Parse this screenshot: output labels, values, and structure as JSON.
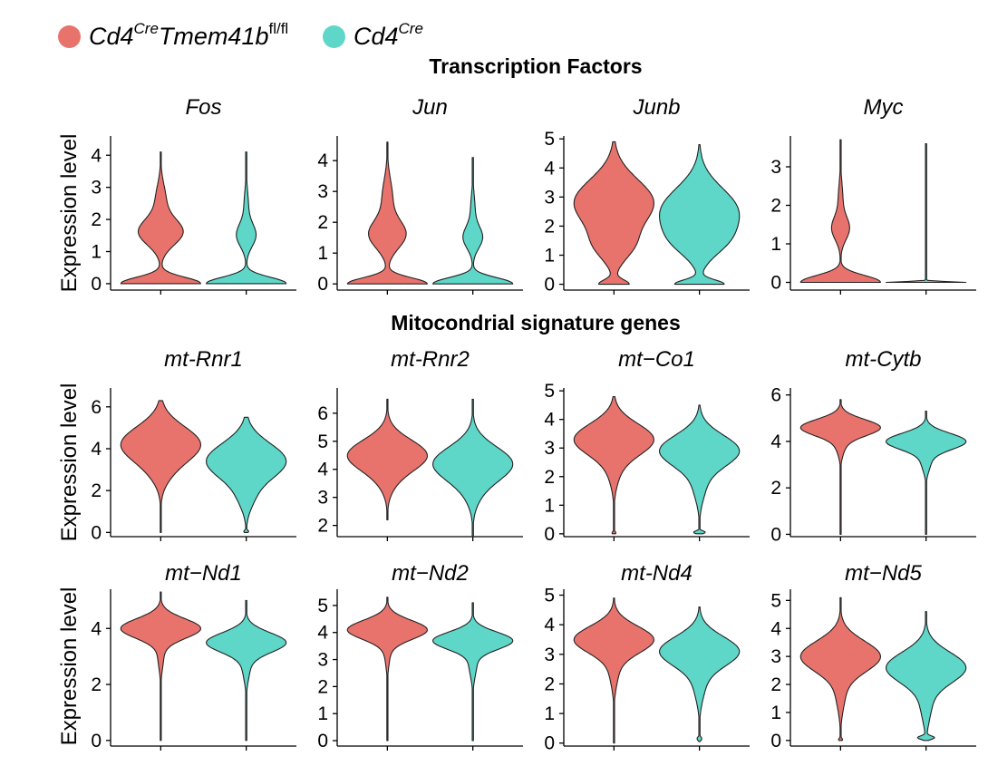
{
  "legend": {
    "items": [
      {
        "label_main": "Cd4",
        "label_sup1": "Cre",
        "label_main2": "Tmem41b",
        "label_sup2": "fl/fl",
        "color": "#E8736C"
      },
      {
        "label_main": "Cd4",
        "label_sup1": "Cre",
        "label_main2": "",
        "label_sup2": "",
        "color": "#5ED6C8"
      }
    ]
  },
  "sections": {
    "transcription": "Transcription Factors",
    "mito": "Mitocondrial signature genes"
  },
  "y_axis_label": "Expression level",
  "chart_data": [
    {
      "type": "violin",
      "title": "Fos",
      "ylim": [
        -0.2,
        4.6
      ],
      "yticks": [
        0,
        1,
        2,
        3,
        4
      ],
      "groups": [
        {
          "name": "Cd4Cre Tmem41b fl/fl",
          "color": "#E8736C",
          "min": 0,
          "max": 4.1,
          "modes": [
            [
              0.0,
              0.55,
              0.2
            ],
            [
              1.6,
              0.3,
              0.4
            ],
            [
              2.6,
              0.07,
              0.5
            ]
          ]
        },
        {
          "name": "Cd4Cre",
          "color": "#5ED6C8",
          "min": 0,
          "max": 4.1,
          "modes": [
            [
              0.0,
              0.55,
              0.2
            ],
            [
              1.5,
              0.13,
              0.35
            ],
            [
              2.4,
              0.03,
              0.5
            ]
          ]
        }
      ]
    },
    {
      "type": "violin",
      "title": "Jun",
      "ylim": [
        -0.2,
        4.8
      ],
      "yticks": [
        0,
        1,
        2,
        3,
        4
      ],
      "groups": [
        {
          "name": "Cd4Cre Tmem41b fl/fl",
          "color": "#E8736C",
          "min": 0,
          "max": 4.6,
          "modes": [
            [
              0.0,
              0.55,
              0.2
            ],
            [
              1.6,
              0.25,
              0.45
            ],
            [
              2.8,
              0.07,
              0.6
            ]
          ]
        },
        {
          "name": "Cd4Cre",
          "color": "#5ED6C8",
          "min": 0,
          "max": 4.1,
          "modes": [
            [
              0.0,
              0.55,
              0.2
            ],
            [
              1.5,
              0.13,
              0.35
            ],
            [
              2.4,
              0.03,
              0.5
            ]
          ]
        }
      ]
    },
    {
      "type": "violin",
      "title": "Junb",
      "ylim": [
        -0.2,
        5.1
      ],
      "yticks": [
        0,
        1,
        2,
        3,
        4,
        5
      ],
      "groups": [
        {
          "name": "Cd4Cre Tmem41b fl/fl",
          "color": "#E8736C",
          "min": 0,
          "max": 4.9,
          "modes": [
            [
              0.0,
              0.35,
              0.15
            ],
            [
              1.3,
              0.35,
              0.5
            ],
            [
              2.8,
              0.95,
              0.8
            ]
          ]
        },
        {
          "name": "Cd4Cre",
          "color": "#5ED6C8",
          "min": 0,
          "max": 4.8,
          "modes": [
            [
              0.0,
              0.6,
              0.15
            ],
            [
              1.4,
              0.35,
              0.5
            ],
            [
              2.5,
              0.95,
              0.8
            ]
          ]
        }
      ]
    },
    {
      "type": "violin",
      "title": "Myc",
      "ylim": [
        -0.2,
        3.8
      ],
      "yticks": [
        0,
        1,
        2,
        3
      ],
      "groups": [
        {
          "name": "Cd4Cre Tmem41b fl/fl",
          "color": "#E8736C",
          "min": 0,
          "max": 3.7,
          "modes": [
            [
              0.0,
              0.55,
              0.18
            ],
            [
              1.4,
              0.12,
              0.3
            ],
            [
              2.2,
              0.03,
              0.4
            ]
          ]
        },
        {
          "name": "Cd4Cre",
          "color": "#5ED6C8",
          "min": 0,
          "max": 3.6,
          "modes": [
            [
              0.0,
              1.0,
              0.02
            ]
          ]
        }
      ]
    },
    {
      "type": "violin",
      "title": "mt-Rnr1",
      "ylim": [
        -0.2,
        6.9
      ],
      "yticks": [
        0,
        2,
        4,
        6
      ],
      "groups": [
        {
          "name": "Cd4Cre Tmem41b fl/fl",
          "color": "#E8736C",
          "min": 0,
          "max": 6.3,
          "modes": [
            [
              4.2,
              1.0,
              0.85
            ],
            [
              2.7,
              0.1,
              0.6
            ]
          ]
        },
        {
          "name": "Cd4Cre",
          "color": "#5ED6C8",
          "min": 0,
          "max": 5.5,
          "modes": [
            [
              3.4,
              0.9,
              0.85
            ],
            [
              1.6,
              0.12,
              0.6
            ],
            [
              0.05,
              0.05,
              0.06
            ]
          ]
        }
      ]
    },
    {
      "type": "violin",
      "title": "mt-Rnr2",
      "ylim": [
        1.6,
        6.9
      ],
      "yticks": [
        2,
        3,
        4,
        5,
        6
      ],
      "groups": [
        {
          "name": "Cd4Cre Tmem41b fl/fl",
          "color": "#E8736C",
          "min": 2.2,
          "max": 6.5,
          "modes": [
            [
              4.5,
              1.0,
              0.55
            ],
            [
              3.5,
              0.1,
              0.45
            ]
          ]
        },
        {
          "name": "Cd4Cre",
          "color": "#5ED6C8",
          "min": 1.6,
          "max": 6.5,
          "modes": [
            [
              4.2,
              0.95,
              0.6
            ],
            [
              3.1,
              0.1,
              0.5
            ]
          ]
        }
      ]
    },
    {
      "type": "violin",
      "title": "mt−Co1",
      "ylim": [
        -0.1,
        5.1
      ],
      "yticks": [
        0,
        1,
        2,
        3,
        4,
        5
      ],
      "groups": [
        {
          "name": "Cd4Cre Tmem41b fl/fl",
          "color": "#E8736C",
          "min": 0,
          "max": 4.8,
          "modes": [
            [
              3.3,
              1.0,
              0.55
            ],
            [
              2.1,
              0.1,
              0.5
            ],
            [
              0.03,
              0.05,
              0.05
            ]
          ]
        },
        {
          "name": "Cd4Cre",
          "color": "#5ED6C8",
          "min": 0,
          "max": 4.5,
          "modes": [
            [
              2.9,
              0.95,
              0.55
            ],
            [
              1.6,
              0.12,
              0.5
            ],
            [
              0.05,
              0.14,
              0.05
            ]
          ]
        }
      ]
    },
    {
      "type": "violin",
      "title": "mt-Cytb",
      "ylim": [
        -0.1,
        6.3
      ],
      "yticks": [
        0,
        2,
        4,
        6
      ],
      "groups": [
        {
          "name": "Cd4Cre Tmem41b fl/fl",
          "color": "#E8736C",
          "min": 0,
          "max": 5.8,
          "modes": [
            [
              4.6,
              1.0,
              0.35
            ],
            [
              3.8,
              0.1,
              0.4
            ]
          ]
        },
        {
          "name": "Cd4Cre",
          "color": "#5ED6C8",
          "min": 0,
          "max": 5.3,
          "modes": [
            [
              4.0,
              0.8,
              0.35
            ],
            [
              3.1,
              0.09,
              0.4
            ]
          ]
        }
      ]
    },
    {
      "type": "violin",
      "title": "mt−Nd1",
      "ylim": [
        -0.2,
        5.4
      ],
      "yticks": [
        0,
        2,
        4
      ],
      "groups": [
        {
          "name": "Cd4Cre Tmem41b fl/fl",
          "color": "#E8736C",
          "min": 0,
          "max": 5.3,
          "modes": [
            [
              4.0,
              1.0,
              0.35
            ],
            [
              3.0,
              0.07,
              0.45
            ]
          ]
        },
        {
          "name": "Cd4Cre",
          "color": "#5ED6C8",
          "min": 0,
          "max": 5.0,
          "modes": [
            [
              3.5,
              0.9,
              0.35
            ],
            [
              2.6,
              0.08,
              0.45
            ]
          ]
        }
      ]
    },
    {
      "type": "violin",
      "title": "mt−Nd2",
      "ylim": [
        -0.2,
        5.6
      ],
      "yticks": [
        0,
        1,
        2,
        3,
        4,
        5
      ],
      "groups": [
        {
          "name": "Cd4Cre Tmem41b fl/fl",
          "color": "#E8736C",
          "min": 0,
          "max": 5.3,
          "modes": [
            [
              4.1,
              1.0,
              0.35
            ],
            [
              3.2,
              0.06,
              0.45
            ]
          ]
        },
        {
          "name": "Cd4Cre",
          "color": "#5ED6C8",
          "min": 0,
          "max": 5.1,
          "modes": [
            [
              3.7,
              0.85,
              0.32
            ],
            [
              2.8,
              0.08,
              0.45
            ]
          ]
        }
      ]
    },
    {
      "type": "violin",
      "title": "mt-Nd4",
      "ylim": [
        -0.1,
        5.2
      ],
      "yticks": [
        0,
        1,
        2,
        3,
        4,
        5
      ],
      "groups": [
        {
          "name": "Cd4Cre Tmem41b fl/fl",
          "color": "#E8736C",
          "min": 0,
          "max": 4.9,
          "modes": [
            [
              3.5,
              1.0,
              0.45
            ],
            [
              2.4,
              0.1,
              0.5
            ]
          ]
        },
        {
          "name": "Cd4Cre",
          "color": "#5ED6C8",
          "min": 0.05,
          "max": 4.6,
          "modes": [
            [
              3.1,
              1.0,
              0.5
            ],
            [
              1.9,
              0.12,
              0.5
            ],
            [
              0.15,
              0.06,
              0.06
            ]
          ]
        }
      ]
    },
    {
      "type": "violin",
      "title": "mt−Nd5",
      "ylim": [
        -0.2,
        5.4
      ],
      "yticks": [
        0,
        1,
        2,
        3,
        4,
        5
      ],
      "groups": [
        {
          "name": "Cd4Cre Tmem41b fl/fl",
          "color": "#E8736C",
          "min": 0,
          "max": 5.1,
          "modes": [
            [
              3.0,
              1.0,
              0.55
            ],
            [
              1.6,
              0.1,
              0.55
            ],
            [
              0.03,
              0.05,
              0.05
            ]
          ]
        },
        {
          "name": "Cd4Cre",
          "color": "#5ED6C8",
          "min": 0,
          "max": 4.6,
          "modes": [
            [
              2.6,
              1.0,
              0.55
            ],
            [
              1.2,
              0.12,
              0.55
            ],
            [
              0.1,
              0.2,
              0.06
            ]
          ]
        }
      ]
    }
  ]
}
